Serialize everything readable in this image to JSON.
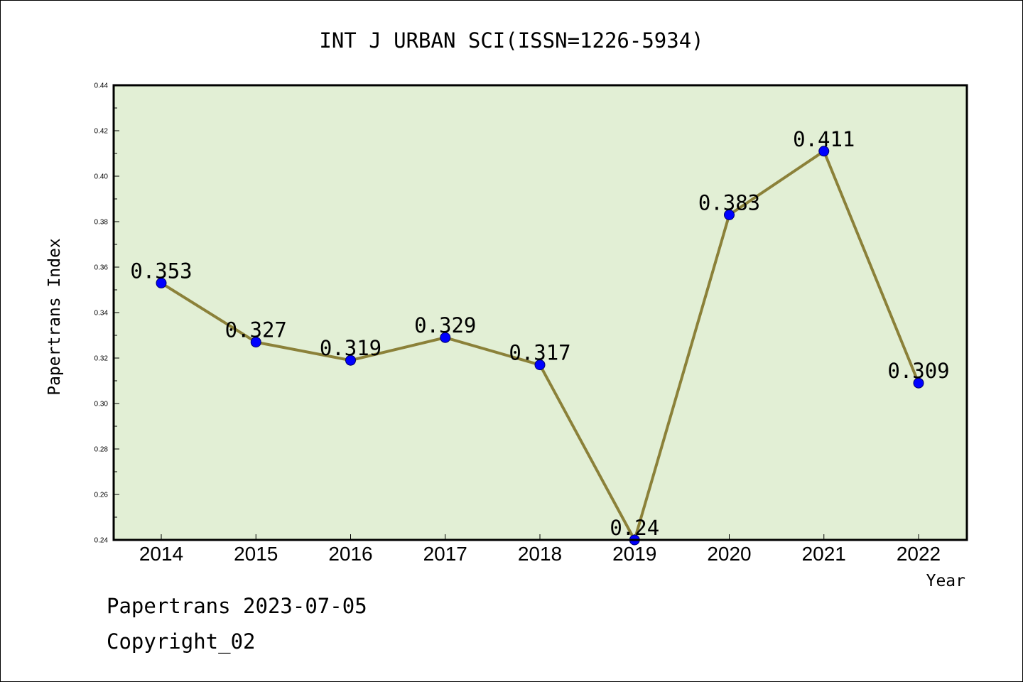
{
  "chart_data": {
    "type": "line",
    "title": "INT J URBAN SCI(ISSN=1226-5934)",
    "xlabel": "Year",
    "ylabel": "Papertrans Index",
    "categories": [
      "2014",
      "2015",
      "2016",
      "2017",
      "2018",
      "2019",
      "2020",
      "2021",
      "2022"
    ],
    "series": [
      {
        "values": [
          0.353,
          0.327,
          0.319,
          0.329,
          0.317,
          0.24,
          0.383,
          0.411,
          0.309
        ]
      }
    ],
    "data_labels": [
      "0.353",
      "0.327",
      "0.319",
      "0.329",
      "0.317",
      "0.24",
      "0.383",
      "0.411",
      "0.309"
    ],
    "ylim": [
      0.24,
      0.44
    ],
    "yticks": [
      "0.24",
      "0.26",
      "0.28",
      "0.30",
      "0.32",
      "0.34",
      "0.36",
      "0.38",
      "0.40",
      "0.42",
      "0.44"
    ],
    "grid": false,
    "legend": "none",
    "colors": {
      "plot_background": "#e2efd5",
      "line": "#8b8139",
      "marker": "#0000ff"
    }
  },
  "footer": {
    "date_line": "Papertrans 2023-07-05",
    "copyright_line": "Copyright_02"
  }
}
